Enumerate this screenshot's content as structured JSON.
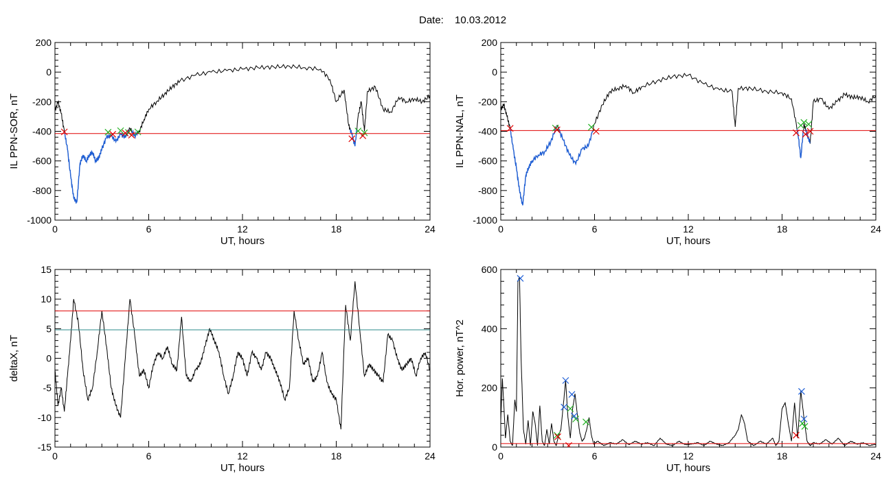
{
  "header": {
    "date_label": "Date:",
    "date_value": "10.03.2012"
  },
  "chart_data": [
    {
      "type": "line",
      "id": "p1",
      "xlabel": "UT, hours",
      "ylabel": "IL PPN-SOR, nT",
      "xlim": [
        0,
        24
      ],
      "ylim": [
        -1000,
        200
      ],
      "xticks": [
        0,
        6,
        12,
        18,
        24
      ],
      "yticks": [
        200,
        0,
        -200,
        -400,
        -600,
        -800,
        -1000
      ],
      "colors": {
        "series": "#000000",
        "highlight": "#1f5fd6",
        "threshold": "#e00000"
      },
      "threshold": -415,
      "series": {
        "x": [
          0,
          0.2,
          0.4,
          0.6,
          0.8,
          1.0,
          1.2,
          1.4,
          1.6,
          1.8,
          2.0,
          2.2,
          2.4,
          2.6,
          2.8,
          3.0,
          3.3,
          3.6,
          3.9,
          4.2,
          4.5,
          4.8,
          5.1,
          5.4,
          5.7,
          6.0,
          6.5,
          7.0,
          7.5,
          8.0,
          9,
          10,
          11,
          12,
          13,
          14,
          15,
          16,
          17,
          17.6,
          18.0,
          18.5,
          18.8,
          19.0,
          19.2,
          19.4,
          19.6,
          19.8,
          20.0,
          20.5,
          21.0,
          21.5,
          22,
          22.5,
          23,
          23.5,
          24
        ],
        "y": [
          -260,
          -200,
          -280,
          -400,
          -520,
          -700,
          -850,
          -880,
          -620,
          -560,
          -600,
          -560,
          -540,
          -600,
          -580,
          -520,
          -440,
          -430,
          -470,
          -420,
          -440,
          -380,
          -430,
          -400,
          -320,
          -250,
          -200,
          -150,
          -100,
          -60,
          -20,
          0,
          10,
          20,
          30,
          35,
          40,
          30,
          20,
          -50,
          -200,
          -120,
          -360,
          -420,
          -500,
          -300,
          -200,
          -400,
          -130,
          -100,
          -250,
          -270,
          -170,
          -200,
          -180,
          -200,
          -160
        ]
      },
      "highlight_ranges": [
        [
          0.2,
          5.3
        ],
        [
          18.8,
          19.7
        ]
      ],
      "markers_red": [
        [
          0.6,
          -404
        ],
        [
          3.7,
          -420
        ],
        [
          4.5,
          -412
        ],
        [
          4.9,
          -426
        ],
        [
          19.0,
          -450
        ],
        [
          19.7,
          -430
        ]
      ],
      "markers_green": [
        [
          3.4,
          -406
        ],
        [
          4.2,
          -396
        ],
        [
          4.7,
          -408
        ],
        [
          5.3,
          -404
        ],
        [
          19.4,
          -398
        ],
        [
          19.8,
          -410
        ]
      ]
    },
    {
      "type": "line",
      "id": "p2",
      "xlabel": "UT, hours",
      "ylabel": "IL PPN-NAL, nT",
      "xlim": [
        0,
        24
      ],
      "ylim": [
        -1000,
        200
      ],
      "xticks": [
        0,
        6,
        12,
        18,
        24
      ],
      "yticks": [
        200,
        0,
        -200,
        -400,
        -600,
        -800,
        -1000
      ],
      "colors": {
        "series": "#000000",
        "highlight": "#1f5fd6",
        "threshold": "#e00000"
      },
      "threshold": -395,
      "series": {
        "x": [
          0,
          0.2,
          0.4,
          0.6,
          0.8,
          1.0,
          1.2,
          1.4,
          1.6,
          1.8,
          2.0,
          2.4,
          2.8,
          3.2,
          3.6,
          4.0,
          4.4,
          4.8,
          5.2,
          5.6,
          6.0,
          6.5,
          7.0,
          7.5,
          8.0,
          8.5,
          9,
          10,
          11,
          12,
          13,
          14,
          14.8,
          15.0,
          15.2,
          16,
          17,
          18,
          18.6,
          19.0,
          19.2,
          19.4,
          19.6,
          19.8,
          20.0,
          20.5,
          21.0,
          21.5,
          22,
          22.5,
          23,
          23.5,
          24
        ],
        "y": [
          -250,
          -220,
          -300,
          -380,
          -520,
          -650,
          -800,
          -900,
          -700,
          -640,
          -600,
          -560,
          -540,
          -470,
          -360,
          -460,
          -560,
          -620,
          -520,
          -500,
          -350,
          -220,
          -130,
          -110,
          -90,
          -140,
          -100,
          -60,
          -30,
          -20,
          -80,
          -120,
          -130,
          -370,
          -110,
          -110,
          -130,
          -140,
          -180,
          -400,
          -580,
          -350,
          -420,
          -480,
          -200,
          -180,
          -250,
          -200,
          -150,
          -170,
          -170,
          -200,
          -160
        ]
      },
      "highlight_ranges": [
        [
          0.2,
          6.0
        ],
        [
          18.8,
          19.8
        ]
      ],
      "markers_red": [
        [
          0.6,
          -380
        ],
        [
          3.6,
          -390
        ],
        [
          6.1,
          -400
        ],
        [
          18.9,
          -410
        ],
        [
          19.5,
          -420
        ],
        [
          19.8,
          -400
        ]
      ],
      "markers_green": [
        [
          3.5,
          -378
        ],
        [
          5.8,
          -372
        ],
        [
          19.2,
          -360
        ],
        [
          19.4,
          -340
        ],
        [
          19.7,
          -352
        ]
      ]
    },
    {
      "type": "line",
      "id": "p3",
      "xlabel": "UT, hours",
      "ylabel": "deltaX, nT",
      "xlim": [
        0,
        24
      ],
      "ylim": [
        -15,
        15
      ],
      "xticks": [
        0,
        6,
        12,
        18,
        24
      ],
      "yticks": [
        15,
        10,
        5,
        0,
        -5,
        -10,
        -15
      ],
      "colors": {
        "series": "#000000",
        "upper_line": "#e00000",
        "lower_line": "#2a8a8a"
      },
      "hlines": [
        {
          "y": 8.0,
          "color": "#e00000"
        },
        {
          "y": 4.8,
          "color": "#2a8a8a"
        }
      ],
      "series": {
        "x": [
          0,
          0.2,
          0.4,
          0.6,
          0.8,
          1.0,
          1.2,
          1.5,
          1.8,
          2.1,
          2.4,
          2.7,
          3.0,
          3.3,
          3.6,
          3.9,
          4.2,
          4.5,
          4.8,
          5.1,
          5.4,
          5.7,
          6.0,
          6.3,
          6.6,
          6.9,
          7.2,
          7.5,
          7.8,
          8.1,
          8.4,
          8.7,
          9.0,
          9.3,
          9.6,
          9.9,
          10.2,
          10.5,
          10.8,
          11.1,
          11.4,
          11.7,
          12.0,
          12.3,
          12.6,
          12.9,
          13.2,
          13.5,
          13.8,
          14.1,
          14.4,
          14.7,
          15.0,
          15.3,
          15.6,
          15.9,
          16.2,
          16.5,
          16.8,
          17.1,
          17.4,
          17.7,
          18.0,
          18.3,
          18.6,
          18.9,
          19.2,
          19.5,
          19.8,
          20.1,
          20.4,
          20.7,
          21.0,
          21.3,
          21.6,
          21.9,
          22.2,
          22.5,
          22.8,
          23.1,
          23.4,
          23.7,
          24.0
        ],
        "y": [
          -2,
          -8,
          -5,
          -9,
          -3,
          3,
          10,
          6,
          -2,
          -7,
          -5,
          1,
          8,
          2,
          -5,
          -8,
          -10,
          0,
          10,
          4,
          -3,
          -2,
          -5,
          -1,
          1,
          0,
          2,
          -1,
          -2,
          7,
          -3,
          -4,
          -2,
          -1,
          2,
          5,
          3,
          1,
          -3,
          -6,
          -3,
          1,
          0,
          -3,
          1,
          0,
          -2,
          1,
          0,
          -2,
          -4,
          -7,
          -5,
          8,
          3,
          -1,
          0,
          -4,
          -3,
          1,
          -4,
          -6,
          -7,
          -12,
          9,
          3,
          13,
          5,
          -3,
          -1,
          -2,
          -3,
          -4,
          4,
          3,
          0,
          -2,
          -1,
          0,
          -3,
          0,
          1,
          -2
        ]
      }
    },
    {
      "type": "line",
      "id": "p4",
      "xlabel": "UT, hours",
      "ylabel": "Hor. power, nT^2",
      "xlim": [
        0,
        24
      ],
      "ylim": [
        0,
        600
      ],
      "xticks": [
        0,
        6,
        12,
        18,
        24
      ],
      "yticks": [
        0,
        200,
        400,
        600
      ],
      "colors": {
        "series": "#000000",
        "threshold": "#e00000",
        "blue_marker": "#1f5fd6",
        "green_marker": "#22b022",
        "red_marker": "#e00000"
      },
      "threshold": 12,
      "series": {
        "x": [
          0,
          0.1,
          0.2,
          0.3,
          0.45,
          0.6,
          0.75,
          0.9,
          1.0,
          1.1,
          1.2,
          1.3,
          1.45,
          1.6,
          1.75,
          1.9,
          2.05,
          2.2,
          2.35,
          2.5,
          2.65,
          2.8,
          2.95,
          3.1,
          3.25,
          3.4,
          3.55,
          3.7,
          3.85,
          4.0,
          4.15,
          4.3,
          4.45,
          4.6,
          4.75,
          4.9,
          5.05,
          5.2,
          5.35,
          5.5,
          5.65,
          5.8,
          5.95,
          6.2,
          6.6,
          7.0,
          7.4,
          7.8,
          8.2,
          8.6,
          9.0,
          9.4,
          9.8,
          10.2,
          10.6,
          11.0,
          11.4,
          11.8,
          12.2,
          12.6,
          13.0,
          13.4,
          13.8,
          14.2,
          14.6,
          15.0,
          15.2,
          15.4,
          15.6,
          15.8,
          16.2,
          16.6,
          17.0,
          17.4,
          17.6,
          17.8,
          18.0,
          18.2,
          18.4,
          18.6,
          18.8,
          19.0,
          19.2,
          19.4,
          19.6,
          19.8,
          20.0,
          20.4,
          20.8,
          21.2,
          21.6,
          22.0,
          22.4,
          22.8,
          23.2,
          23.6,
          24.0
        ],
        "y": [
          90,
          232,
          140,
          30,
          110,
          20,
          5,
          160,
          120,
          560,
          575,
          300,
          60,
          10,
          90,
          5,
          120,
          80,
          5,
          140,
          20,
          5,
          60,
          10,
          80,
          20,
          5,
          40,
          60,
          140,
          225,
          100,
          30,
          130,
          180,
          110,
          50,
          20,
          30,
          60,
          100,
          40,
          10,
          20,
          5,
          15,
          10,
          25,
          8,
          20,
          10,
          15,
          5,
          30,
          10,
          5,
          20,
          8,
          10,
          15,
          5,
          20,
          10,
          5,
          15,
          40,
          60,
          110,
          80,
          20,
          5,
          20,
          10,
          30,
          5,
          20,
          130,
          150,
          80,
          20,
          150,
          30,
          190,
          100,
          20,
          5,
          15,
          10,
          25,
          10,
          30,
          5,
          20,
          10,
          15,
          5,
          10
        ]
      },
      "markers_blue": [
        [
          1.25,
          570
        ],
        [
          4.15,
          225
        ],
        [
          4.55,
          178
        ],
        [
          4.05,
          135
        ],
        [
          4.7,
          105
        ],
        [
          19.25,
          188
        ],
        [
          19.4,
          95
        ]
      ],
      "markers_green": [
        [
          3.6,
          40
        ],
        [
          4.45,
          130
        ],
        [
          4.8,
          95
        ],
        [
          5.45,
          85
        ],
        [
          19.3,
          80
        ],
        [
          19.45,
          70
        ]
      ],
      "markers_red": [
        [
          3.65,
          35
        ],
        [
          4.35,
          5
        ],
        [
          18.9,
          40
        ]
      ]
    }
  ]
}
